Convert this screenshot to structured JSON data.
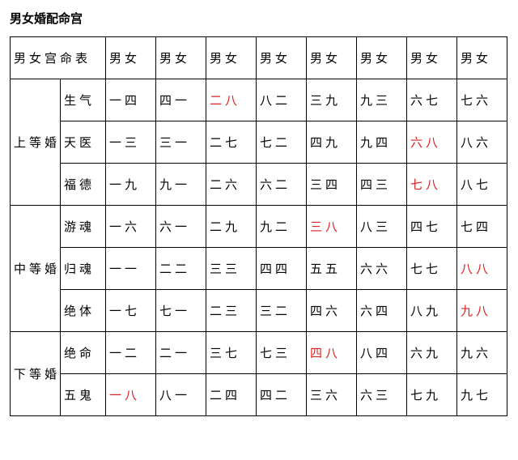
{
  "title": "男女婚配命宫",
  "table": {
    "head_merge": "男女宫命表",
    "col_headers": [
      "男女",
      "男女",
      "男女",
      "男女",
      "男女",
      "男女",
      "男女",
      "男女"
    ],
    "groups": [
      {
        "label": "上等婚",
        "rows": [
          {
            "sub": "生气",
            "cells": [
              {
                "t": "一四"
              },
              {
                "t": "四一"
              },
              {
                "t": "二八",
                "red": true
              },
              {
                "t": "八二"
              },
              {
                "t": "三九"
              },
              {
                "t": "九三"
              },
              {
                "t": "六七"
              },
              {
                "t": "七六"
              }
            ]
          },
          {
            "sub": "天医",
            "cells": [
              {
                "t": "一三"
              },
              {
                "t": "三一"
              },
              {
                "t": "二七"
              },
              {
                "t": "七二"
              },
              {
                "t": "四九"
              },
              {
                "t": "九四"
              },
              {
                "t": "六八",
                "red": true
              },
              {
                "t": "八六"
              }
            ]
          },
          {
            "sub": "福德",
            "cells": [
              {
                "t": "一九"
              },
              {
                "t": "九一"
              },
              {
                "t": "二六"
              },
              {
                "t": "六二"
              },
              {
                "t": "三四"
              },
              {
                "t": "四三"
              },
              {
                "t": "七八",
                "red": true
              },
              {
                "t": "八七"
              }
            ]
          }
        ]
      },
      {
        "label": "中等婚",
        "rows": [
          {
            "sub": "游魂",
            "cells": [
              {
                "t": "一六"
              },
              {
                "t": "六一"
              },
              {
                "t": "二九"
              },
              {
                "t": "九二"
              },
              {
                "t": "三八",
                "red": true
              },
              {
                "t": "八三"
              },
              {
                "t": "四七"
              },
              {
                "t": "七四"
              }
            ]
          },
          {
            "sub": "归魂",
            "cells": [
              {
                "t": "一一"
              },
              {
                "t": "二二"
              },
              {
                "t": "三三"
              },
              {
                "t": "四四"
              },
              {
                "t": "五五"
              },
              {
                "t": "六六"
              },
              {
                "t": "七七"
              },
              {
                "t": "八八",
                "red": true
              }
            ]
          },
          {
            "sub": "绝体",
            "cells": [
              {
                "t": "一七"
              },
              {
                "t": "七一"
              },
              {
                "t": "二三"
              },
              {
                "t": "三二"
              },
              {
                "t": "四六"
              },
              {
                "t": "六四"
              },
              {
                "t": "八九"
              },
              {
                "t": "九八",
                "red": true
              }
            ]
          }
        ]
      },
      {
        "label": "下等婚",
        "rows": [
          {
            "sub": "绝命",
            "cells": [
              {
                "t": "一二"
              },
              {
                "t": "二一"
              },
              {
                "t": "三七"
              },
              {
                "t": "七三"
              },
              {
                "t": "四八",
                "red": true
              },
              {
                "t": "八四"
              },
              {
                "t": "六九"
              },
              {
                "t": "九六"
              }
            ]
          },
          {
            "sub": "五鬼",
            "cells": [
              {
                "t": "一八",
                "red": true
              },
              {
                "t": "八一"
              },
              {
                "t": "二四"
              },
              {
                "t": "四二"
              },
              {
                "t": "三六"
              },
              {
                "t": "六三"
              },
              {
                "t": "七九"
              },
              {
                "t": "九七"
              }
            ]
          }
        ]
      }
    ]
  }
}
